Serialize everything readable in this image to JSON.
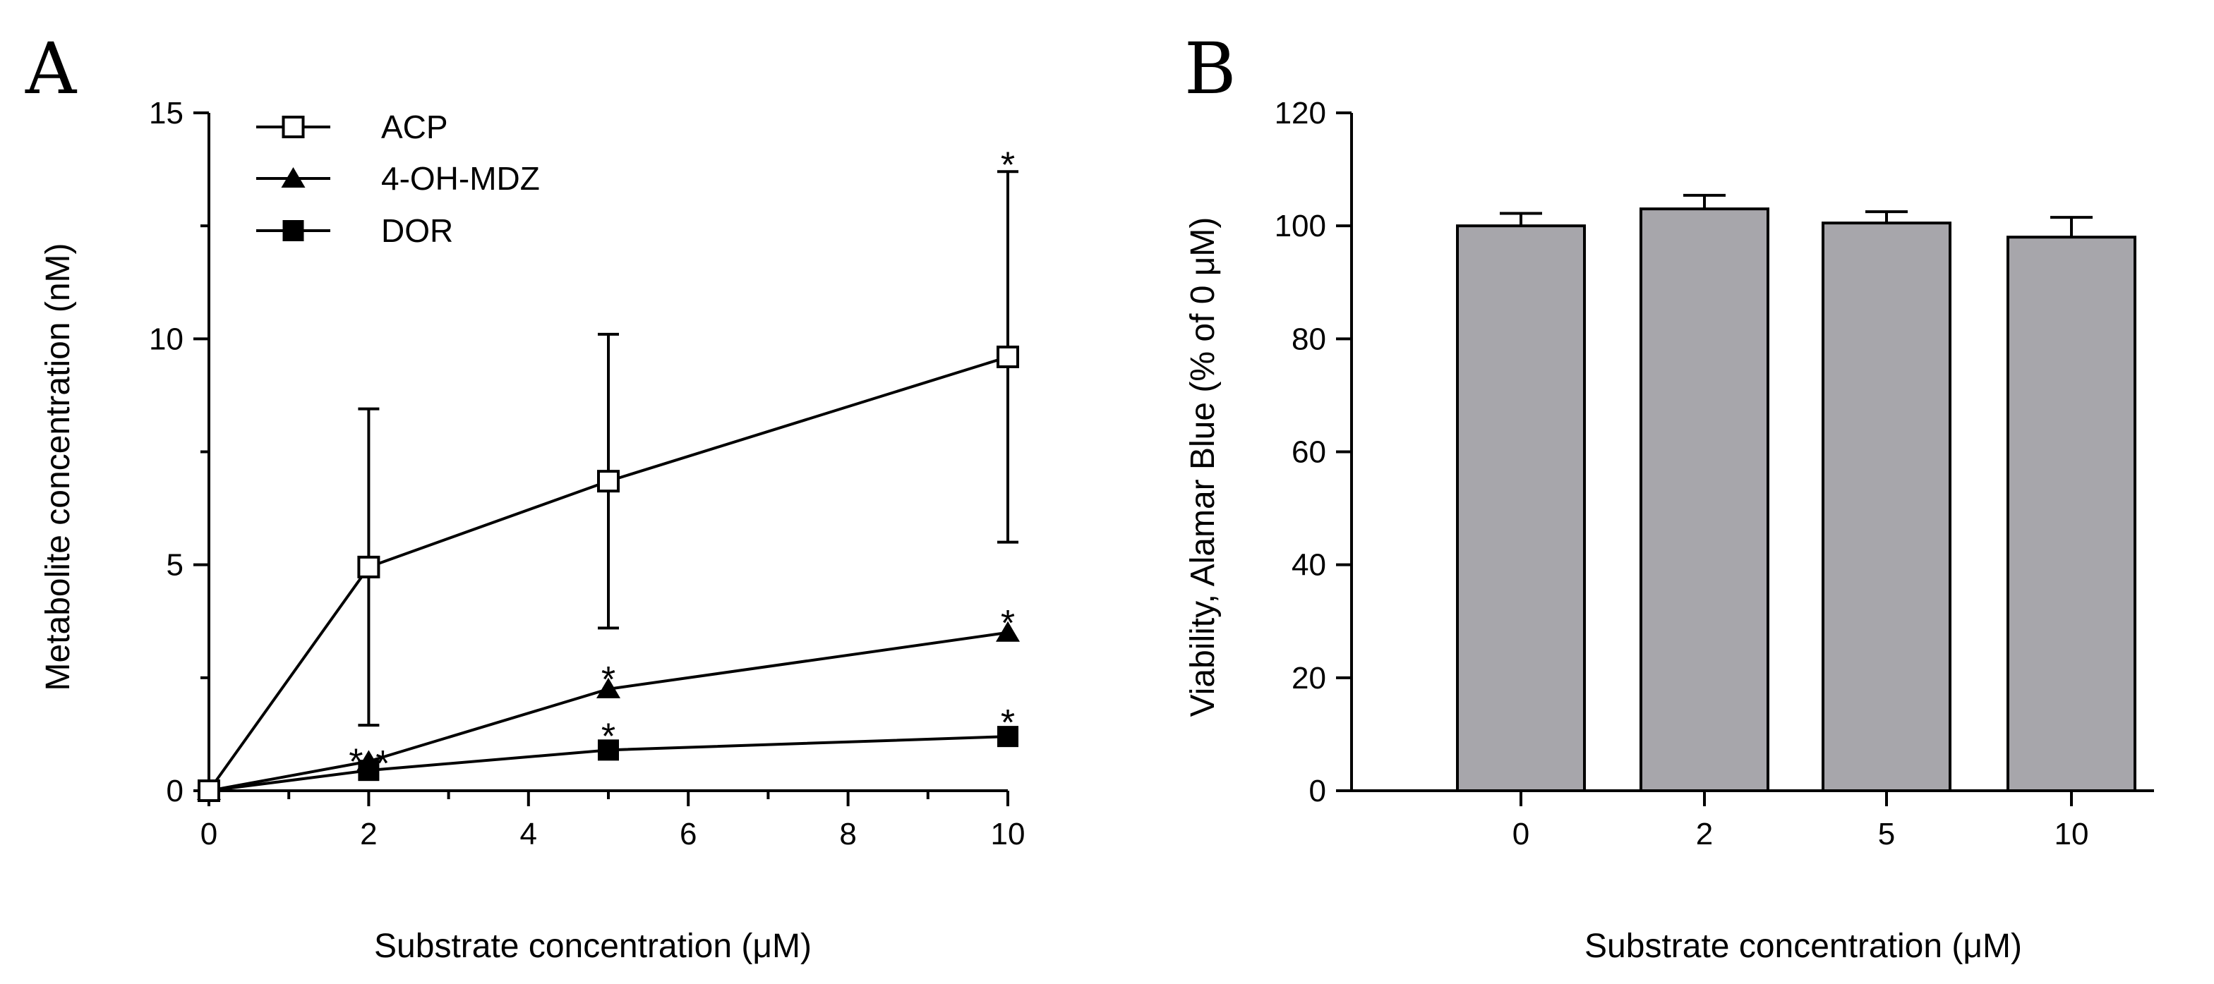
{
  "panels": [
    {
      "letter": "A"
    },
    {
      "letter": "B"
    }
  ],
  "chart_data": [
    {
      "type": "line",
      "panel": "A",
      "xlabel": "Substrate concentration (μM)",
      "ylabel": "Metabolite concentration (nM)",
      "xlim": [
        0,
        10
      ],
      "ylim": [
        0,
        15
      ],
      "xticks": [
        "0",
        "2",
        "4",
        "6",
        "8",
        "10"
      ],
      "yticks": [
        "0",
        "5",
        "10",
        "15"
      ],
      "legend_position": "top-left",
      "series": [
        {
          "name": "ACP",
          "marker": "open-square",
          "x": [
            0,
            2,
            5,
            10
          ],
          "y": [
            0,
            4.95,
            6.85,
            9.6
          ],
          "err": [
            0,
            3.5,
            3.25,
            4.1
          ],
          "stars": [
            "",
            "",
            "",
            "*"
          ]
        },
        {
          "name": "4-OH-MDZ",
          "marker": "filled-triangle",
          "x": [
            0,
            2,
            5,
            10
          ],
          "y": [
            0,
            0.65,
            2.25,
            3.5
          ],
          "err": [
            0,
            0,
            0,
            0
          ],
          "stars": [
            "",
            "*",
            "*",
            "*"
          ]
        },
        {
          "name": "DOR",
          "marker": "filled-square",
          "x": [
            0,
            2,
            5,
            10
          ],
          "y": [
            0,
            0.45,
            0.9,
            1.2
          ],
          "err": [
            0,
            0,
            0,
            0
          ],
          "stars": [
            "",
            "*",
            "*",
            "*"
          ]
        }
      ]
    },
    {
      "type": "bar",
      "panel": "B",
      "xlabel": "Substrate concentration (μM)",
      "ylabel": "Viability, Alamar Blue (% of 0 μM)",
      "categories": [
        "0",
        "2",
        "5",
        "10"
      ],
      "values": [
        100,
        103,
        100.5,
        98
      ],
      "err": [
        2.2,
        2.4,
        2.0,
        3.5
      ],
      "ylim": [
        0,
        120
      ],
      "yticks": [
        "0",
        "20",
        "40",
        "60",
        "80",
        "100",
        "120"
      ],
      "bar_color": "#a7a6ab"
    }
  ]
}
